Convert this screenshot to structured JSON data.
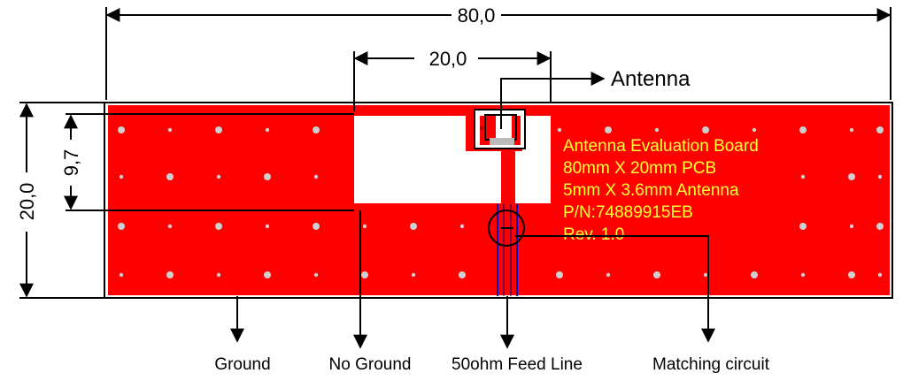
{
  "dimensions": {
    "board_width": "80,0",
    "no_ground_width": "20,0",
    "no_ground_height": "9,7",
    "board_height": "20,0"
  },
  "callouts": {
    "antenna": "Antenna",
    "ground": "Ground",
    "no_ground": "No Ground",
    "feed_line": "50ohm Feed Line",
    "matching_circuit": "Matching circuit"
  },
  "board_text": {
    "line1": "Antenna Evaluation Board",
    "line2": "80mm X 20mm PCB",
    "line3": "5mm X 3.6mm Antenna",
    "line4": "P/N:74889915EB",
    "line5": "Rev. 1.0"
  },
  "colors": {
    "board": "#ff0000",
    "board_text": "#ffff33",
    "via": "#cfcfcf",
    "feed_outline": "#0000cc"
  }
}
